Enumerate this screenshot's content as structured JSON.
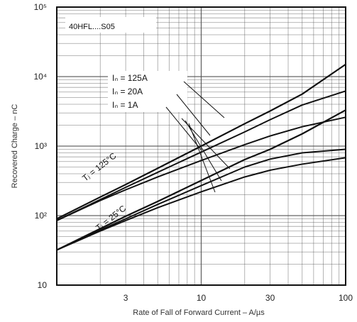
{
  "chart_data": {
    "type": "line",
    "title": "",
    "model_label": "40HFL....S05",
    "xlabel": "Rate of Fall of Forward Current – A/µs",
    "ylabel": "Recovered Charge – nC",
    "x_scale": "log",
    "y_scale": "log",
    "xlim": [
      1,
      100
    ],
    "ylim": [
      10,
      100000
    ],
    "x_ticks": [
      {
        "value": 3,
        "label": "3"
      },
      {
        "value": 10,
        "label": "10"
      },
      {
        "value": 30,
        "label": "30"
      },
      {
        "value": 100,
        "label": "100"
      }
    ],
    "y_ticks": [
      {
        "value": 10,
        "label": "10"
      },
      {
        "value": 100,
        "label": "10²"
      },
      {
        "value": 1000,
        "label": "10³"
      },
      {
        "value": 10000,
        "label": "10⁴"
      },
      {
        "value": 100000,
        "label": "10⁵"
      }
    ],
    "grid": true,
    "legend_labels": [
      {
        "text": "Iₙ = 125A"
      },
      {
        "text": "Iₙ =   20A"
      },
      {
        "text": "Iₙ =     1A"
      }
    ],
    "group_labels": [
      {
        "text": "Tⱼ = 125°C"
      },
      {
        "text": "Tⱼ = 25°C"
      }
    ],
    "series": [
      {
        "x": [
          1,
          2,
          3,
          5,
          10,
          20,
          30,
          50,
          100
        ],
        "y": [
          90,
          185,
          280,
          480,
          1000,
          2100,
          3200,
          5600,
          15000
        ]
      },
      {
        "x": [
          1,
          2,
          3,
          5,
          10,
          20,
          30,
          50,
          100
        ],
        "y": [
          85,
          170,
          255,
          420,
          820,
          1600,
          2400,
          3900,
          6200
        ]
      },
      {
        "x": [
          1,
          2,
          3,
          5,
          10,
          20,
          30,
          50,
          100
        ],
        "y": [
          85,
          165,
          235,
          360,
          620,
          1050,
          1400,
          1900,
          2600
        ]
      },
      {
        "x": [
          1,
          2,
          3,
          5,
          10,
          20,
          30,
          50,
          100
        ],
        "y": [
          32,
          65,
          98,
          160,
          320,
          640,
          900,
          1500,
          3300
        ]
      },
      {
        "x": [
          1,
          2,
          3,
          5,
          10,
          20,
          30,
          50,
          100
        ],
        "y": [
          32,
          62,
          90,
          145,
          270,
          500,
          650,
          800,
          900
        ]
      },
      {
        "x": [
          1,
          2,
          3,
          5,
          10,
          20,
          30,
          50,
          100
        ],
        "y": [
          32,
          60,
          85,
          130,
          220,
          360,
          450,
          550,
          680
        ]
      }
    ],
    "colors": {
      "background": "#ffffff",
      "grid": "#555555",
      "curve": "#111111",
      "text": "#222222"
    }
  }
}
